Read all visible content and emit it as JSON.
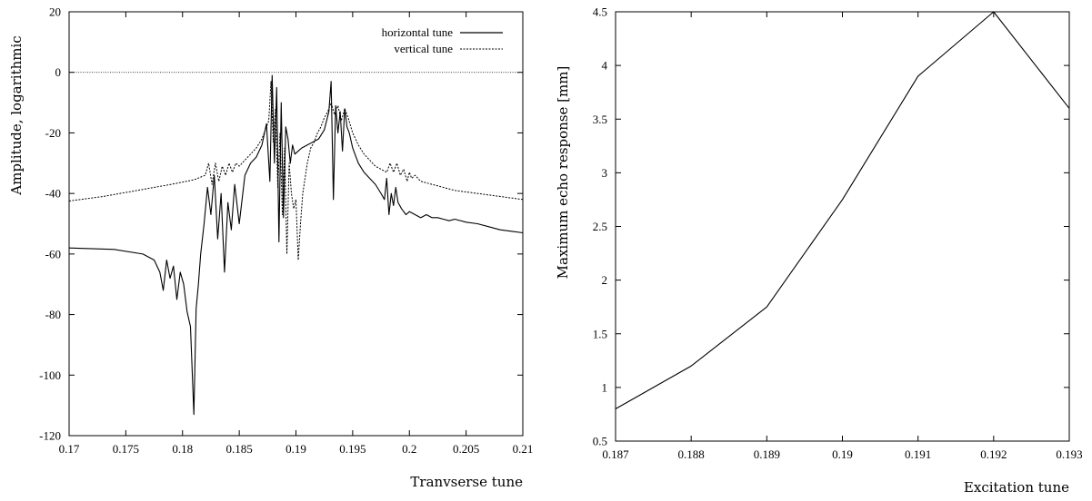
{
  "chart_data": [
    {
      "type": "line",
      "xlabel": "Tranvserse tune",
      "ylabel": "Amplitude, logarithmic",
      "xlim": [
        0.17,
        0.21
      ],
      "ylim": [
        -120,
        20
      ],
      "xticks": [
        0.17,
        0.175,
        0.18,
        0.185,
        0.19,
        0.195,
        0.2,
        0.205,
        0.21
      ],
      "xtick_labels": [
        "0.17",
        "0.175",
        "0.18",
        "0.185",
        "0.19",
        "0.195",
        "0.2",
        "0.205",
        "0.21"
      ],
      "yticks": [
        -120,
        -100,
        -80,
        -60,
        -40,
        -20,
        0,
        20
      ],
      "ytick_labels": [
        "-120",
        "-100",
        "-80",
        "-60",
        "-40",
        "-20",
        "0",
        "20"
      ],
      "reference_line": 0,
      "legend_position": "top-right",
      "series": [
        {
          "name": "horizontal tune",
          "style": "solid",
          "x": [
            0.17,
            0.174,
            0.1765,
            0.1775,
            0.178,
            0.1783,
            0.1786,
            0.1789,
            0.1792,
            0.1795,
            0.1798,
            0.1801,
            0.1804,
            0.1807,
            0.181,
            0.1812,
            0.1814,
            0.1816,
            0.1819,
            0.1822,
            0.1825,
            0.1828,
            0.1831,
            0.1834,
            0.1837,
            0.184,
            0.1843,
            0.1846,
            0.185,
            0.1855,
            0.186,
            0.1865,
            0.187,
            0.1874,
            0.1877,
            0.1879,
            0.1881,
            0.1883,
            0.1885,
            0.1887,
            0.1889,
            0.1891,
            0.1893,
            0.1895,
            0.1897,
            0.1899,
            0.1902,
            0.1905,
            0.191,
            0.1915,
            0.192,
            0.1925,
            0.1929,
            0.1931,
            0.1933,
            0.1935,
            0.1937,
            0.1939,
            0.1941,
            0.1943,
            0.1945,
            0.1947,
            0.195,
            0.1955,
            0.196,
            0.1965,
            0.197,
            0.1975,
            0.1978,
            0.198,
            0.1982,
            0.1984,
            0.1986,
            0.1988,
            0.199,
            0.1993,
            0.1997,
            0.2,
            0.2005,
            0.201,
            0.2015,
            0.202,
            0.2025,
            0.203,
            0.2035,
            0.204,
            0.205,
            0.206,
            0.207,
            0.208,
            0.209,
            0.21
          ],
          "y": [
            -58,
            -58.5,
            -60,
            -62,
            -66,
            -72,
            -62,
            -68,
            -64,
            -75,
            -66,
            -70,
            -79,
            -84,
            -113,
            -78,
            -70,
            -60,
            -50,
            -38,
            -47,
            -34,
            -55,
            -40,
            -66,
            -43,
            -52,
            -37,
            -50,
            -34,
            -30,
            -28,
            -24,
            -17,
            -36,
            -1,
            -30,
            -5,
            -56,
            -10,
            -48,
            -18,
            -22,
            -30,
            -24,
            -27,
            -26,
            -25,
            -24,
            -23,
            -22,
            -19,
            -13,
            -3,
            -42,
            -11,
            -20,
            -13,
            -26,
            -12,
            -18,
            -20,
            -25,
            -30,
            -33,
            -35,
            -37,
            -40,
            -42,
            -35,
            -47,
            -40,
            -44,
            -38,
            -43,
            -45,
            -47,
            -46,
            -47,
            -48,
            -47,
            -48,
            -48,
            -48.5,
            -49,
            -48.5,
            -49.5,
            -50,
            -51,
            -52,
            -52.5,
            -53
          ]
        },
        {
          "name": "vertical tune",
          "style": "dashed",
          "x": [
            0.17,
            0.173,
            0.176,
            0.179,
            0.181,
            0.182,
            0.1823,
            0.1826,
            0.1829,
            0.1832,
            0.1835,
            0.1838,
            0.1841,
            0.1844,
            0.1847,
            0.185,
            0.1855,
            0.186,
            0.1865,
            0.187,
            0.1873,
            0.1876,
            0.1878,
            0.188,
            0.1882,
            0.1884,
            0.1886,
            0.1888,
            0.189,
            0.1892,
            0.1894,
            0.1896,
            0.1898,
            0.19,
            0.1902,
            0.1904,
            0.1906,
            0.1908,
            0.191,
            0.1913,
            0.1916,
            0.1919,
            0.1922,
            0.1925,
            0.1928,
            0.1931,
            0.1934,
            0.1937,
            0.194,
            0.1943,
            0.1946,
            0.195,
            0.1955,
            0.196,
            0.1965,
            0.197,
            0.1975,
            0.198,
            0.1983,
            0.1986,
            0.1989,
            0.1992,
            0.1995,
            0.1998,
            0.2,
            0.2002,
            0.2005,
            0.201,
            0.202,
            0.203,
            0.204,
            0.205,
            0.206,
            0.207,
            0.208,
            0.209,
            0.21
          ],
          "y": [
            -42.5,
            -41,
            -39,
            -37,
            -35.5,
            -34,
            -30,
            -37,
            -30,
            -36,
            -31,
            -34,
            -30,
            -33,
            -30,
            -31,
            -29,
            -27,
            -25,
            -22,
            -19,
            -16,
            -3,
            -23,
            -12,
            -38,
            -20,
            -47,
            -25,
            -60,
            -30,
            -40,
            -45,
            -42,
            -62,
            -50,
            -40,
            -35,
            -30,
            -25,
            -23,
            -20,
            -18,
            -15,
            -13,
            -10,
            -14,
            -11,
            -16,
            -12,
            -15,
            -20,
            -24,
            -27,
            -29,
            -31,
            -32,
            -33,
            -30,
            -33,
            -30,
            -34,
            -32,
            -36,
            -33,
            -35,
            -34,
            -36,
            -37,
            -38,
            -39,
            -39.5,
            -40,
            -40.5,
            -41,
            -41.5,
            -42
          ]
        }
      ]
    },
    {
      "type": "line",
      "xlabel": "Excitation tune",
      "ylabel": "Maximum echo response [mm]",
      "xlim": [
        0.187,
        0.193
      ],
      "ylim": [
        0.5,
        4.5
      ],
      "xticks": [
        0.187,
        0.188,
        0.189,
        0.19,
        0.191,
        0.192,
        0.193
      ],
      "xtick_labels": [
        "0.187",
        "0.188",
        "0.189",
        "0.19",
        "0.191",
        "0.192",
        "0.193"
      ],
      "yticks": [
        0.5,
        1,
        1.5,
        2,
        2.5,
        3,
        3.5,
        4,
        4.5
      ],
      "ytick_labels": [
        "0.5",
        "1",
        "1.5",
        "2",
        "2.5",
        "3",
        "3.5",
        "4",
        "4.5"
      ],
      "series": [
        {
          "x": [
            0.187,
            0.188,
            0.189,
            0.19,
            0.191,
            0.192,
            0.193
          ],
          "y": [
            0.8,
            1.2,
            1.75,
            2.75,
            3.9,
            4.5,
            3.6
          ]
        }
      ]
    }
  ]
}
